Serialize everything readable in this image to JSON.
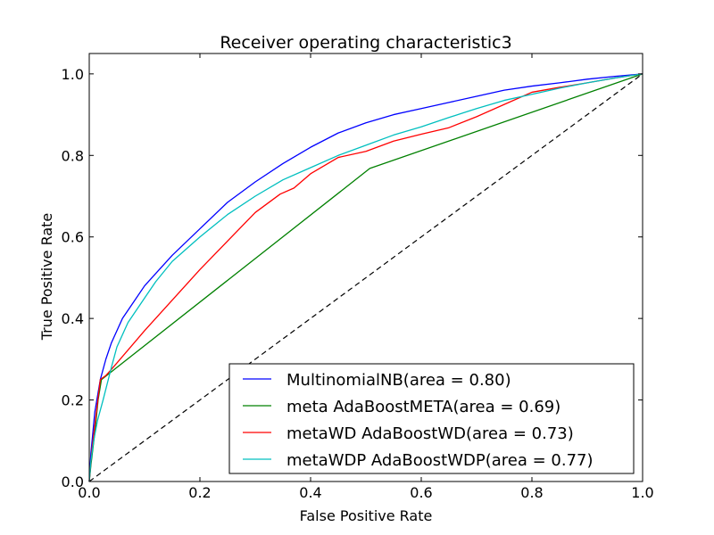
{
  "chart_data": {
    "type": "line",
    "title": "Receiver operating characteristic3",
    "xlabel": "False Positive Rate",
    "ylabel": "True Positive Rate",
    "xlim": [
      0.0,
      1.0
    ],
    "ylim": [
      0.0,
      1.05
    ],
    "x_ticks": [
      "0.0",
      "0.2",
      "0.4",
      "0.6",
      "0.8",
      "1.0"
    ],
    "y_ticks": [
      "0.0",
      "0.2",
      "0.4",
      "0.6",
      "0.8",
      "1.0"
    ],
    "grid": false,
    "legend_position": "lower-right",
    "diagonal_reference": {
      "color": "#000000",
      "style": "dashed",
      "x": [
        0,
        1
      ],
      "y": [
        0,
        1
      ]
    },
    "series": [
      {
        "name": "MultinomialNB(area = 0.80)",
        "color": "#0000ff",
        "x": [
          0,
          0.003,
          0.01,
          0.015,
          0.02,
          0.03,
          0.04,
          0.05,
          0.06,
          0.08,
          0.1,
          0.12,
          0.15,
          0.2,
          0.25,
          0.3,
          0.35,
          0.4,
          0.45,
          0.5,
          0.55,
          0.6,
          0.65,
          0.7,
          0.75,
          0.8,
          0.85,
          0.9,
          0.95,
          1.0
        ],
        "y": [
          0,
          0.07,
          0.17,
          0.21,
          0.25,
          0.3,
          0.34,
          0.37,
          0.4,
          0.44,
          0.48,
          0.51,
          0.555,
          0.62,
          0.685,
          0.735,
          0.78,
          0.82,
          0.855,
          0.88,
          0.9,
          0.915,
          0.93,
          0.945,
          0.96,
          0.97,
          0.978,
          0.987,
          0.994,
          1.0
        ]
      },
      {
        "name": "meta AdaBoostMETA(area = 0.69)",
        "color": "#008000",
        "x": [
          0,
          0.003,
          0.01,
          0.016,
          0.022,
          0.507,
          1.0
        ],
        "y": [
          0,
          0.04,
          0.12,
          0.2,
          0.25,
          0.768,
          1.0
        ]
      },
      {
        "name": "metaWD AdaBoostWD(area = 0.73)",
        "color": "#ff0000",
        "x": [
          0,
          0.005,
          0.012,
          0.02,
          0.03,
          0.04,
          0.1,
          0.2,
          0.3,
          0.345,
          0.37,
          0.4,
          0.45,
          0.5,
          0.55,
          0.6,
          0.65,
          0.7,
          0.75,
          0.8,
          0.85,
          0.9,
          0.95,
          1.0
        ],
        "y": [
          0,
          0.08,
          0.16,
          0.25,
          0.26,
          0.275,
          0.37,
          0.52,
          0.66,
          0.705,
          0.72,
          0.755,
          0.795,
          0.81,
          0.835,
          0.852,
          0.868,
          0.895,
          0.925,
          0.955,
          0.967,
          0.978,
          0.99,
          1.0
        ]
      },
      {
        "name": "metaWDP AdaBoostWDP(area = 0.77)",
        "color": "#00bfbf",
        "x": [
          0,
          0.003,
          0.008,
          0.015,
          0.025,
          0.04,
          0.05,
          0.07,
          0.1,
          0.12,
          0.15,
          0.2,
          0.25,
          0.3,
          0.35,
          0.4,
          0.45,
          0.5,
          0.55,
          0.6,
          0.65,
          0.7,
          0.75,
          0.8,
          0.85,
          0.9,
          0.95,
          1.0
        ],
        "y": [
          0,
          0.05,
          0.1,
          0.15,
          0.2,
          0.28,
          0.33,
          0.39,
          0.45,
          0.49,
          0.54,
          0.6,
          0.655,
          0.7,
          0.74,
          0.77,
          0.8,
          0.825,
          0.85,
          0.87,
          0.893,
          0.915,
          0.935,
          0.95,
          0.965,
          0.978,
          0.99,
          1.0
        ]
      }
    ]
  }
}
